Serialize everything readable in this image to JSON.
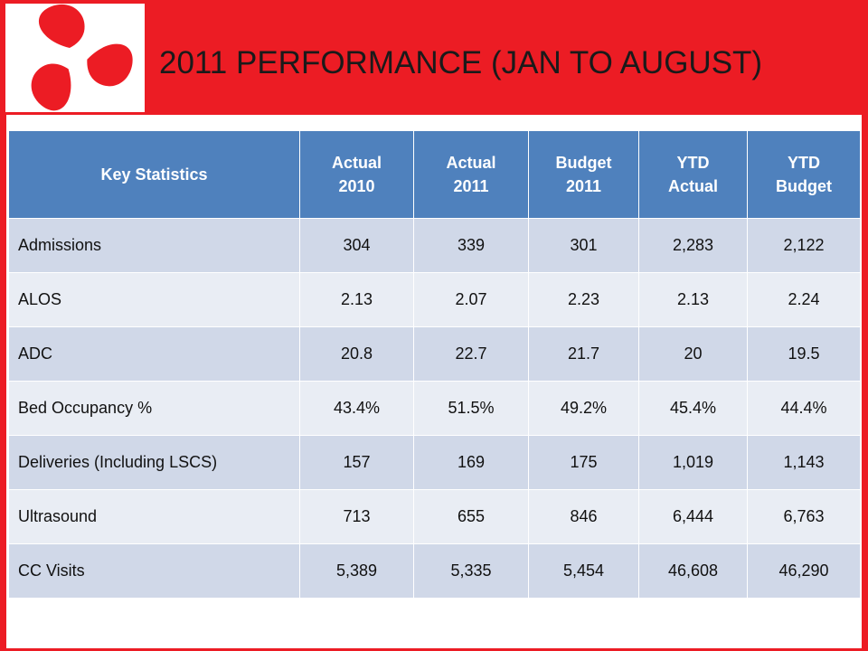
{
  "title": "2011 PERFORMANCE (JAN TO AUGUST)",
  "logo": {
    "icon": "red-tri-swirl-icon",
    "color": "#ec1c24"
  },
  "colors": {
    "header_bg": "#4f81bd",
    "row_odd": "#d0d8e8",
    "row_even": "#e9edf4",
    "frame": "#ec1c24"
  },
  "table": {
    "headers": [
      {
        "line1": "Key Statistics",
        "line2": ""
      },
      {
        "line1": "Actual",
        "line2": "2010"
      },
      {
        "line1": "Actual",
        "line2": "2011"
      },
      {
        "line1": "Budget",
        "line2": "2011"
      },
      {
        "line1": "YTD",
        "line2": "Actual"
      },
      {
        "line1": "YTD",
        "line2": "Budget"
      }
    ],
    "rows": [
      [
        "Admissions",
        "304",
        "339",
        "301",
        "2,283",
        "2,122"
      ],
      [
        "ALOS",
        "2.13",
        "2.07",
        "2.23",
        "2.13",
        "2.24"
      ],
      [
        "ADC",
        "20.8",
        "22.7",
        "21.7",
        "20",
        "19.5"
      ],
      [
        "Bed Occupancy %",
        "43.4%",
        "51.5%",
        "49.2%",
        "45.4%",
        "44.4%"
      ],
      [
        "Deliveries (Including LSCS)",
        "157",
        "169",
        "175",
        "1,019",
        "1,143"
      ],
      [
        "Ultrasound",
        "713",
        "655",
        "846",
        "6,444",
        "6,763"
      ],
      [
        "CC Visits",
        "5,389",
        "5,335",
        "5,454",
        "46,608",
        "46,290"
      ]
    ]
  }
}
